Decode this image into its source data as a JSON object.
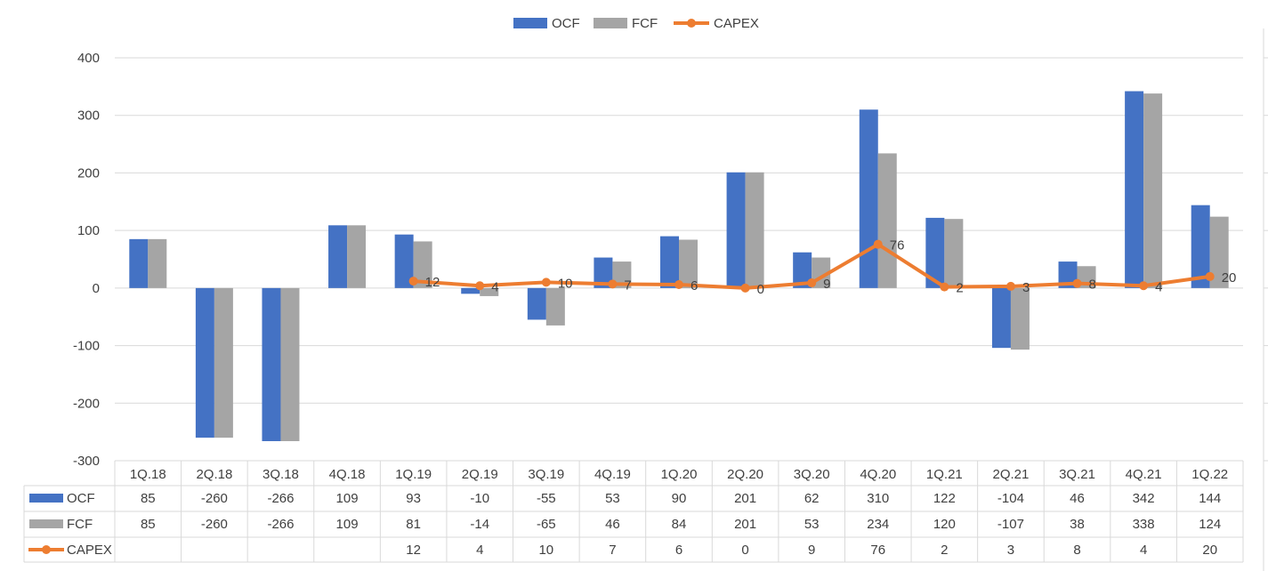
{
  "chart_data": {
    "type": "bar",
    "categories": [
      "1Q.18",
      "2Q.18",
      "3Q.18",
      "4Q.18",
      "1Q.19",
      "2Q.19",
      "3Q.19",
      "4Q.19",
      "1Q.20",
      "2Q.20",
      "3Q.20",
      "4Q.20",
      "1Q.21",
      "2Q.21",
      "3Q.21",
      "4Q.21",
      "1Q.22"
    ],
    "series": [
      {
        "name": "OCF",
        "kind": "bar",
        "color": "#4472C4",
        "values": [
          85,
          -260,
          -266,
          109,
          93,
          -10,
          -55,
          53,
          90,
          201,
          62,
          310,
          122,
          -104,
          46,
          342,
          144
        ]
      },
      {
        "name": "FCF",
        "kind": "bar",
        "color": "#A5A5A5",
        "values": [
          85,
          -260,
          -266,
          109,
          81,
          -14,
          -65,
          46,
          84,
          201,
          53,
          234,
          120,
          -107,
          38,
          338,
          124
        ]
      },
      {
        "name": "CAPEX",
        "kind": "line",
        "color": "#ED7D31",
        "values": [
          null,
          null,
          null,
          null,
          12,
          4,
          10,
          7,
          6,
          0,
          9,
          76,
          2,
          3,
          8,
          4,
          20
        ]
      }
    ],
    "ylim": [
      -300,
      400
    ],
    "yticks": [
      400,
      300,
      200,
      100,
      0,
      -100,
      -200,
      -300
    ],
    "grid": true,
    "legend": "top-center",
    "data_table": true,
    "data_labels_series": "CAPEX",
    "gridline_color": "#D9D9D9",
    "axis_text_color": "#404040"
  }
}
